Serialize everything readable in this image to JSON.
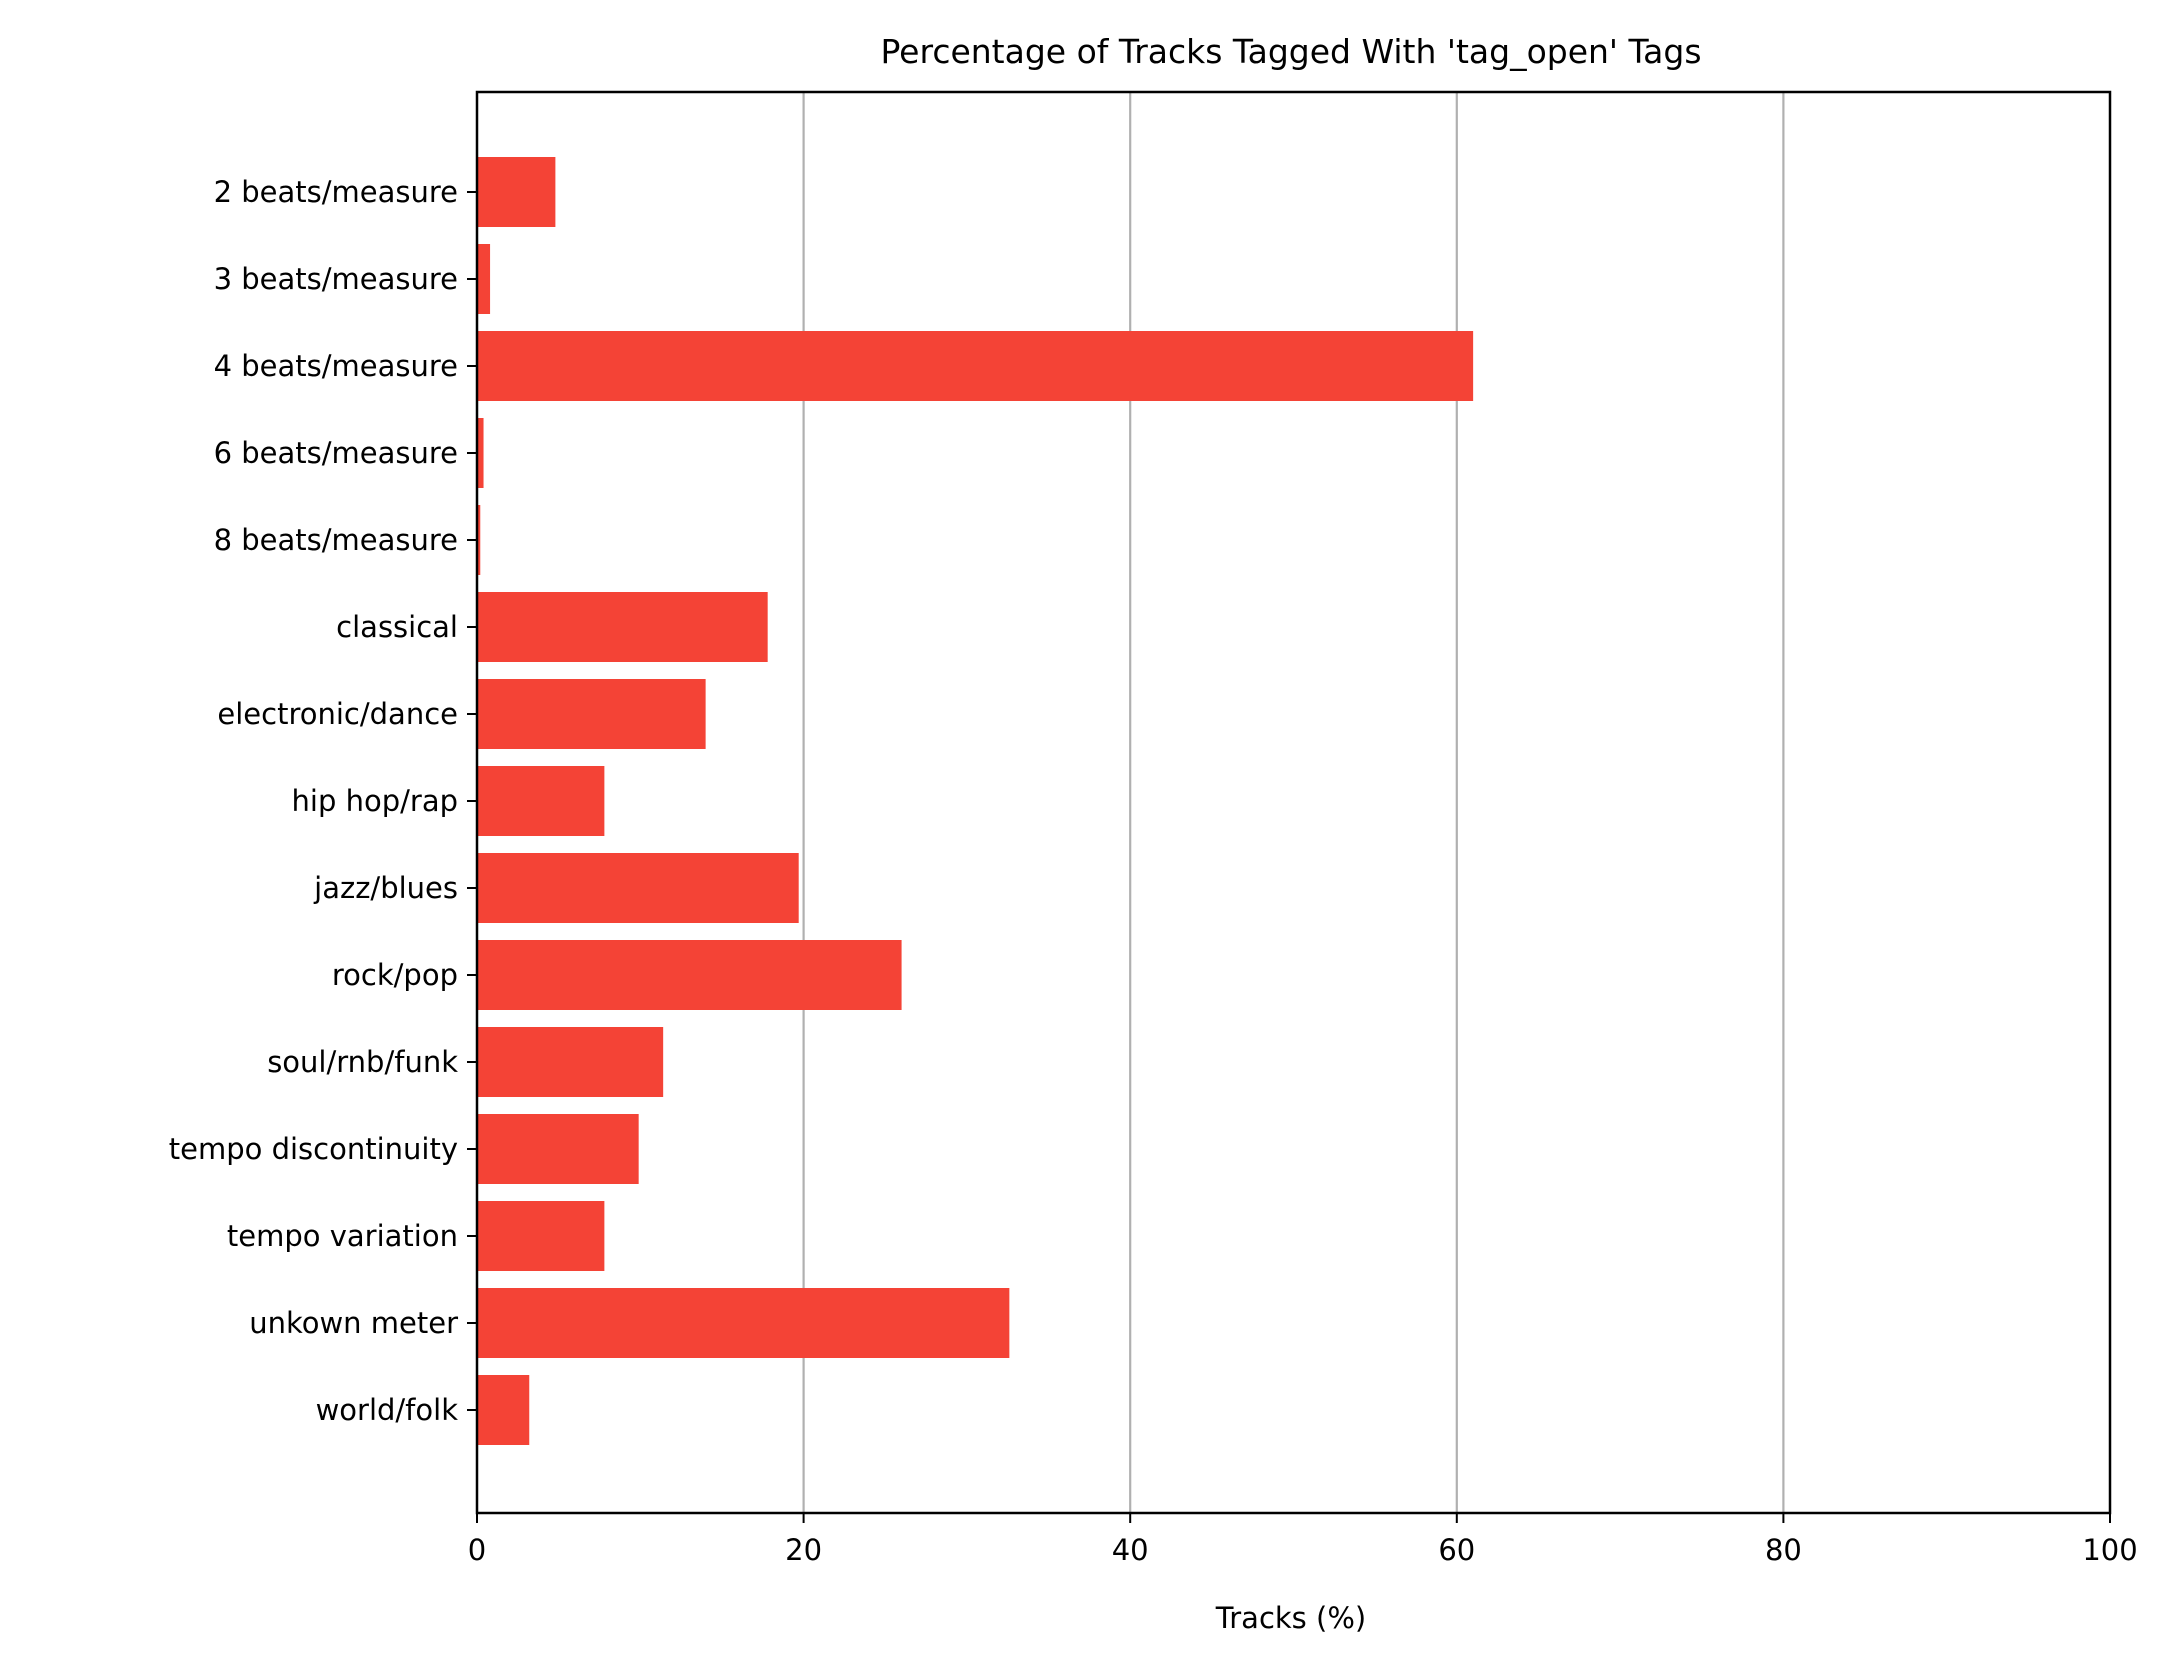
{
  "chart_data": {
    "type": "bar",
    "orientation": "horizontal",
    "title": "Percentage of Tracks Tagged With 'tag_open' Tags",
    "xlabel": "Tracks (%)",
    "ylabel": "",
    "xlim": [
      0,
      100
    ],
    "xticks": [
      0,
      20,
      40,
      60,
      80,
      100
    ],
    "grid": "vertical gridlines at x ticks",
    "bar_color": "#f44336",
    "gridline_color": "#b0b0b0",
    "categories": [
      "2 beats/measure",
      "3 beats/measure",
      "4 beats/measure",
      "6 beats/measure",
      "8 beats/measure",
      "classical",
      "electronic/dance",
      "hip hop/rap",
      "jazz/blues",
      "rock/pop",
      "soul/rnb/funk",
      "tempo discontinuity",
      "tempo variation",
      "unkown meter",
      "world/folk"
    ],
    "values": [
      4.8,
      0.8,
      61.0,
      0.4,
      0.2,
      17.8,
      14.0,
      7.8,
      19.7,
      26.0,
      11.4,
      9.9,
      7.8,
      32.6,
      3.2
    ]
  }
}
